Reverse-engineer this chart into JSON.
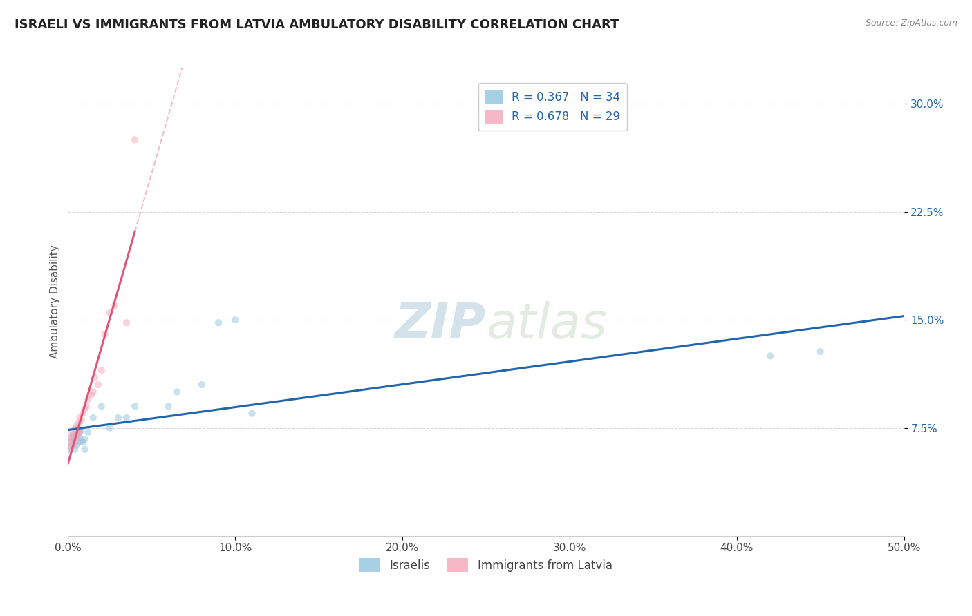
{
  "title": "ISRAELI VS IMMIGRANTS FROM LATVIA AMBULATORY DISABILITY CORRELATION CHART",
  "source": "Source: ZipAtlas.com",
  "ylabel": "Ambulatory Disability",
  "xlim": [
    0.0,
    0.5
  ],
  "ylim": [
    0.0,
    0.325
  ],
  "yticks": [
    0.075,
    0.15,
    0.225,
    0.3
  ],
  "legend_labels": [
    "Israelis",
    "Immigrants from Latvia"
  ],
  "israeli_color": "#92c5de",
  "latvian_color": "#f4a6b8",
  "trend_blue": "#2166ac",
  "trend_pink": "#e05577",
  "israeli_R": 0.367,
  "israeli_N": 34,
  "latvian_R": 0.678,
  "latvian_N": 29,
  "israeli_x": [
    0.001,
    0.001,
    0.002,
    0.002,
    0.003,
    0.003,
    0.004,
    0.004,
    0.005,
    0.005,
    0.006,
    0.006,
    0.007,
    0.007,
    0.008,
    0.008,
    0.009,
    0.01,
    0.01,
    0.012,
    0.015,
    0.02,
    0.025,
    0.03,
    0.035,
    0.04,
    0.06,
    0.065,
    0.08,
    0.09,
    0.1,
    0.11,
    0.42,
    0.45
  ],
  "israeli_y": [
    0.06,
    0.065,
    0.062,
    0.068,
    0.064,
    0.07,
    0.06,
    0.068,
    0.063,
    0.07,
    0.065,
    0.072,
    0.068,
    0.072,
    0.066,
    0.074,
    0.065,
    0.06,
    0.067,
    0.072,
    0.082,
    0.09,
    0.075,
    0.082,
    0.082,
    0.09,
    0.09,
    0.1,
    0.105,
    0.148,
    0.15,
    0.085,
    0.125,
    0.128
  ],
  "latvian_x": [
    0.001,
    0.001,
    0.002,
    0.002,
    0.003,
    0.003,
    0.004,
    0.004,
    0.005,
    0.005,
    0.006,
    0.006,
    0.007,
    0.007,
    0.008,
    0.009,
    0.01,
    0.011,
    0.012,
    0.014,
    0.015,
    0.016,
    0.018,
    0.02,
    0.022,
    0.025,
    0.028,
    0.035,
    0.04
  ],
  "latvian_y": [
    0.06,
    0.065,
    0.068,
    0.072,
    0.063,
    0.07,
    0.065,
    0.074,
    0.068,
    0.076,
    0.07,
    0.078,
    0.072,
    0.082,
    0.08,
    0.085,
    0.088,
    0.09,
    0.095,
    0.098,
    0.1,
    0.11,
    0.105,
    0.115,
    0.14,
    0.155,
    0.16,
    0.148,
    0.275
  ],
  "background_color": "#ffffff",
  "grid_color": "#cccccc",
  "title_fontsize": 13,
  "axis_label_fontsize": 11,
  "tick_fontsize": 11,
  "legend_fontsize": 12,
  "marker_size": 55,
  "marker_alpha": 0.5
}
